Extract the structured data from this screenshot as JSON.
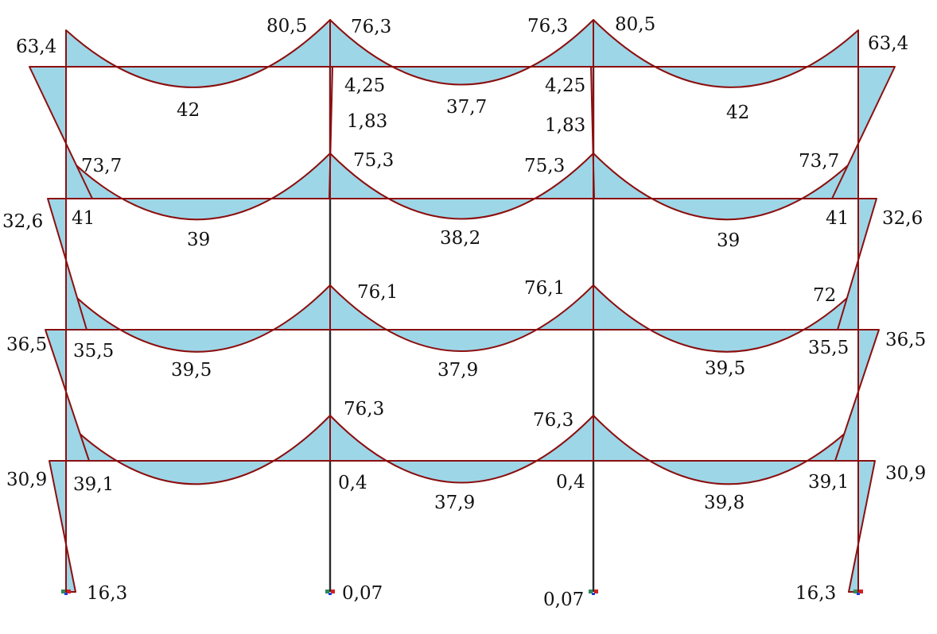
{
  "diagram": {
    "type": "bending-moment-diagram",
    "frame": {
      "bays": 3,
      "storeys": 4
    },
    "colors": {
      "fill": "#9dd6e7",
      "outline": "#8b0f0f",
      "frame": "#1a1a1a"
    }
  },
  "labels": {
    "roof_left_end": "63,4",
    "roof_right_end": "63,4",
    "roof_col2_left": "80,5",
    "roof_col2_right": "76,3",
    "roof_col3_left": "76,3",
    "roof_col3_right": "80,5",
    "roof_span1": "42",
    "roof_span2": "37,7",
    "roof_span3": "42",
    "col2_top_a": "4,25",
    "col2_top_b": "1,83",
    "col3_top_a": "4,25",
    "col3_top_b": "1,83",
    "f3_left_top": "73,7",
    "f3_col2_right": "75,3",
    "f3_col3_left": "75,3",
    "f3_right_top": "73,7",
    "f3_left_outer": "32,6",
    "f3_left_inner": "41",
    "f3_span1": "39",
    "f3_span2": "38,2",
    "f3_span3": "39",
    "f3_right_inner": "41",
    "f3_right_outer": "32,6",
    "f2_col2_right": "76,1",
    "f2_col3_left": "76,1",
    "f2_right_top": "72",
    "f2_left_outer": "36,5",
    "f2_left_inner": "35,5",
    "f2_span1": "39,5",
    "f2_span2": "37,9",
    "f2_span3": "39,5",
    "f2_right_inner": "35,5",
    "f2_right_outer": "36,5",
    "f1_col2_right": "76,3",
    "f1_col3_left": "76,3",
    "f1_left_outer": "30,9",
    "f1_left_inner": "39,1",
    "f1_col2_bottom": "0,4",
    "f1_span2": "37,9",
    "f1_col3_bottom": "0,4",
    "f1_span3": "39,8",
    "f1_right_inner": "39,1",
    "f1_right_outer": "30,9",
    "base_col1": "16,3",
    "base_col2": "0,07",
    "base_col3": "0,07",
    "base_col4": "16,3"
  }
}
